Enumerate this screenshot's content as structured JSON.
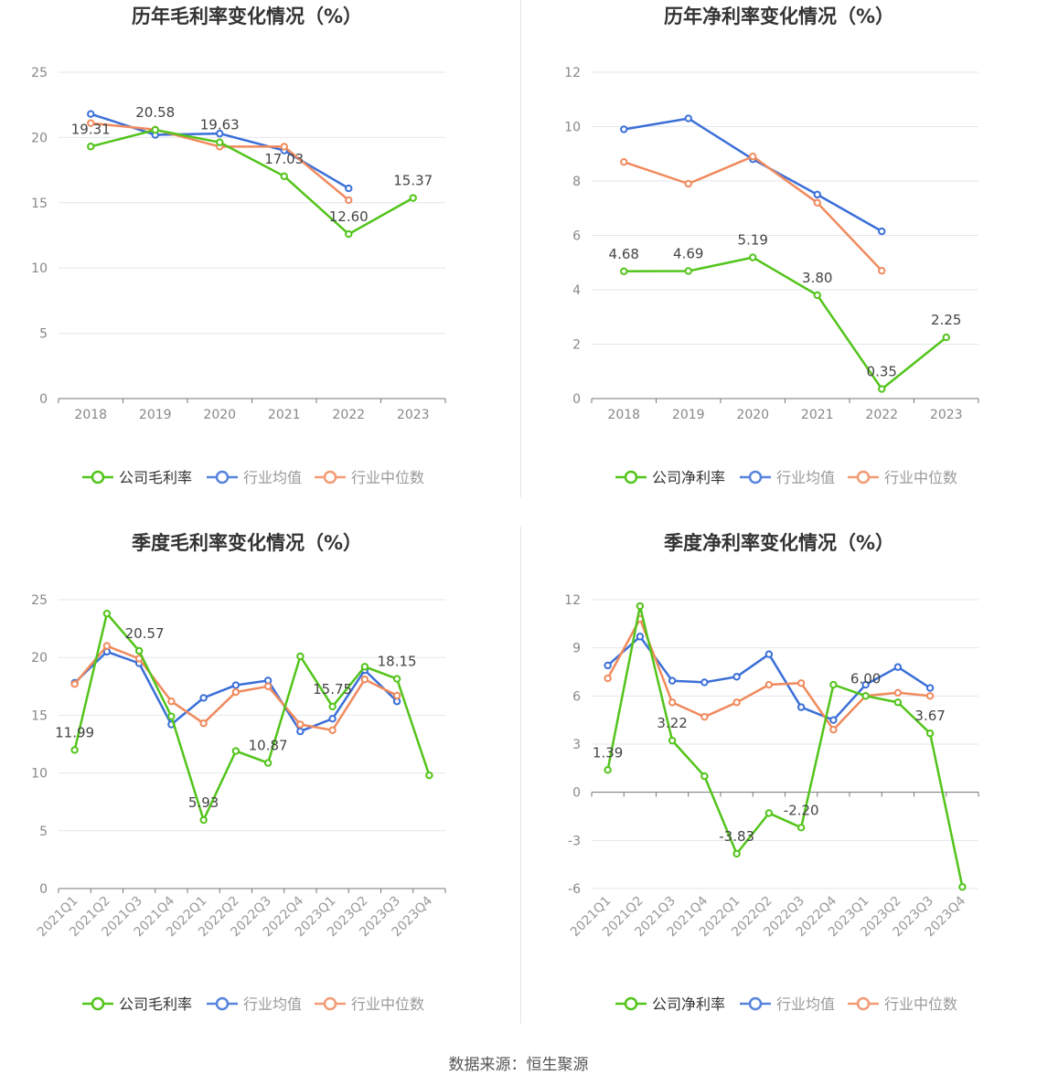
{
  "source": "数据来源：恒生聚源",
  "colors": {
    "company": "#52c41a",
    "avg": "#3b6fd8",
    "median": "#f08a5d"
  },
  "chart_data": [
    {
      "type": "line",
      "title": "历年毛利率变化情况（%）",
      "categories": [
        "2018",
        "2019",
        "2020",
        "2021",
        "2022",
        "2023"
      ],
      "ylim": [
        0,
        25
      ],
      "yticks": [
        0,
        5,
        10,
        15,
        20,
        25
      ],
      "legend_position": "bottom",
      "series": [
        {
          "name": "公司毛利率",
          "values": [
            19.31,
            20.58,
            19.63,
            17.03,
            12.6,
            15.37
          ],
          "labels": [
            "19.31",
            "20.58",
            "19.63",
            "17.03",
            "12.60",
            "15.37"
          ]
        },
        {
          "name": "行业均值",
          "values": [
            21.8,
            20.2,
            20.3,
            19.0,
            16.1,
            null
          ]
        },
        {
          "name": "行业中位数",
          "values": [
            21.1,
            20.6,
            19.3,
            19.3,
            15.2,
            null
          ]
        }
      ]
    },
    {
      "type": "line",
      "title": "历年净利率变化情况（%）",
      "categories": [
        "2018",
        "2019",
        "2020",
        "2021",
        "2022",
        "2023"
      ],
      "ylim": [
        0,
        12
      ],
      "yticks": [
        0,
        2,
        4,
        6,
        8,
        10,
        12
      ],
      "legend_position": "bottom",
      "series": [
        {
          "name": "公司净利率",
          "values": [
            4.68,
            4.69,
            5.19,
            3.8,
            0.35,
            2.25
          ],
          "labels": [
            "4.68",
            "4.69",
            "5.19",
            "3.80",
            "0.35",
            "2.25"
          ]
        },
        {
          "name": "行业均值",
          "values": [
            9.9,
            10.3,
            8.8,
            7.5,
            6.15,
            null
          ]
        },
        {
          "name": "行业中位数",
          "values": [
            8.7,
            7.9,
            8.9,
            7.2,
            4.7,
            null
          ]
        }
      ]
    },
    {
      "type": "line",
      "title": "季度毛利率变化情况（%）",
      "categories": [
        "2021Q1",
        "2021Q2",
        "2021Q3",
        "2021Q4",
        "2022Q1",
        "2022Q2",
        "2022Q3",
        "2022Q4",
        "2023Q1",
        "2023Q2",
        "2023Q3",
        "2023Q4"
      ],
      "ylim": [
        0,
        25
      ],
      "yticks": [
        0,
        5,
        10,
        15,
        20,
        25
      ],
      "legend_position": "bottom",
      "series": [
        {
          "name": "公司毛利率",
          "values": [
            11.99,
            23.8,
            20.57,
            14.9,
            5.93,
            11.9,
            10.87,
            20.1,
            15.75,
            19.2,
            18.15,
            9.8
          ],
          "labels": [
            "11.99",
            "",
            "20.57",
            "",
            "5.93",
            "",
            "10.87",
            "",
            "15.75",
            "",
            "18.15",
            ""
          ]
        },
        {
          "name": "行业均值",
          "values": [
            17.8,
            20.5,
            19.5,
            14.2,
            16.5,
            17.6,
            18.0,
            13.6,
            14.7,
            18.9,
            16.2,
            null
          ]
        },
        {
          "name": "行业中位数",
          "values": [
            17.7,
            21.0,
            19.9,
            16.2,
            14.3,
            17.0,
            17.5,
            14.2,
            13.7,
            18.1,
            16.7,
            null
          ]
        }
      ]
    },
    {
      "type": "line",
      "title": "季度净利率变化情况（%）",
      "categories": [
        "2021Q1",
        "2021Q2",
        "2021Q3",
        "2021Q4",
        "2022Q1",
        "2022Q2",
        "2022Q3",
        "2022Q4",
        "2023Q1",
        "2023Q2",
        "2023Q3",
        "2023Q4"
      ],
      "ylim": [
        -6,
        12
      ],
      "yticks": [
        -6,
        -3,
        0,
        3,
        6,
        9,
        12
      ],
      "legend_position": "bottom",
      "series": [
        {
          "name": "公司净利率",
          "values": [
            1.39,
            11.6,
            3.22,
            1.0,
            -3.83,
            -1.3,
            -2.2,
            6.7,
            6.0,
            5.6,
            3.67,
            -5.9
          ],
          "labels": [
            "1.39",
            "",
            "3.22",
            "",
            "-3.83",
            "",
            "-2.20",
            "",
            "6.00",
            "",
            "3.67",
            ""
          ]
        },
        {
          "name": "行业均值",
          "values": [
            7.9,
            9.7,
            6.95,
            6.85,
            7.2,
            8.6,
            5.3,
            4.5,
            6.7,
            7.8,
            6.5,
            null
          ]
        },
        {
          "name": "行业中位数",
          "values": [
            7.1,
            10.8,
            5.6,
            4.7,
            5.6,
            6.7,
            6.8,
            3.9,
            6.0,
            6.2,
            6.0,
            null
          ]
        }
      ]
    }
  ]
}
